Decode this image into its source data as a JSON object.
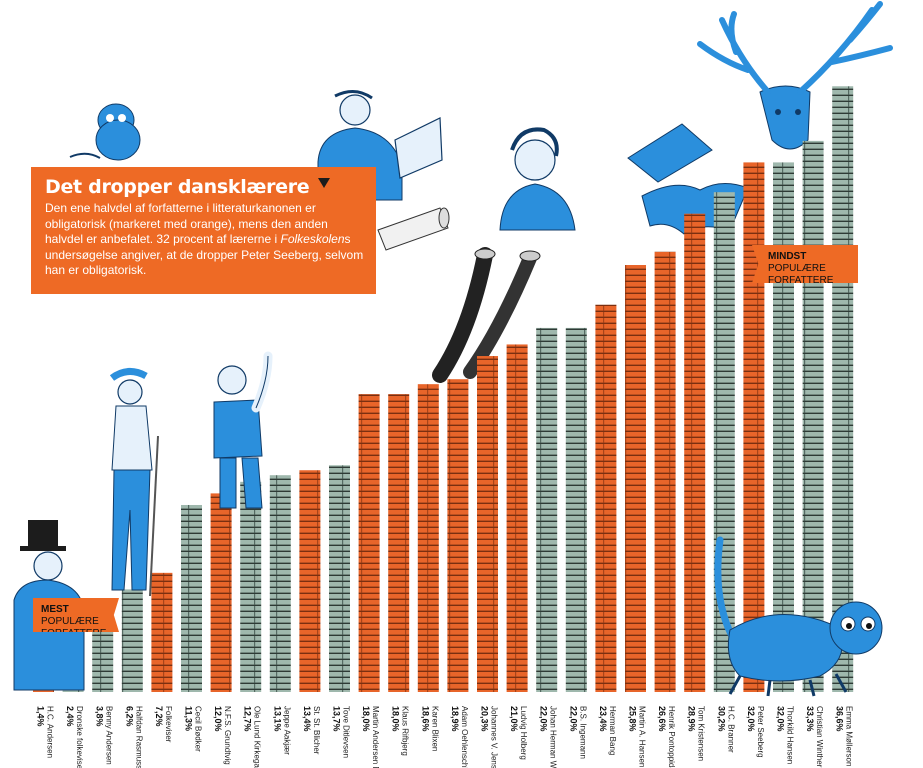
{
  "title": "Det dropper dansklærere",
  "intro_pre": "Den ene halvdel af forfatterne i litteraturkanonen er obligatorisk (markeret med orange), mens den anden halvdel er anbefalet. 32 procent af lærerne i ",
  "intro_em": "Folkeskolen",
  "intro_post": "s undersøgelse angiver, at de dropper Peter Seeberg, selvom han er obligatorisk.",
  "most_bold": "MEST",
  "most_rest": " POPULÆRE FORFATTERE",
  "least_bold": "MINDST",
  "least_rest": " POPULÆRE FORFATTERE",
  "colors": {
    "mandatory": "#e8652a",
    "recommended": "#9fb8ad",
    "accent": "#ee6a25",
    "illustration": "#2b8fdc"
  },
  "chart_data": {
    "type": "bar",
    "ylabel": "",
    "ylim": [
      0,
      40
    ],
    "categories": [
      "H.C. Andersen",
      "Dronske folkeviser",
      "Benny Andersen",
      "Halfdan Rasmussen",
      "Folkeviser",
      "Cecil Bødker",
      "N.F.S. Grundtvig",
      "Ole Lund Kirkegaard",
      "Jeppe Aakjær",
      "St. St. Blicher",
      "Tove Ditlevsen",
      "Martin Andersen Nexø",
      "Klaus Rifbjerg",
      "Karen Blixen",
      "Adam Oehlenschläger",
      "Johannes V. Jensen",
      "Ludvig Holberg",
      "Johan Herman Wessel",
      "B.S. Ingemann",
      "Herman Bang",
      "Martin A. Hansen",
      "Henrik Pontoppidan",
      "Tom Kristensen",
      "H.C. Branner",
      "Peter Seeberg",
      "Thorkild Hansen",
      "Christian Winther",
      "Emma Møllerson"
    ],
    "values": [
      1.4,
      2.4,
      3.8,
      6.2,
      7.2,
      11.3,
      12.0,
      12.7,
      13.1,
      13.4,
      13.7,
      18.0,
      18.0,
      18.6,
      18.9,
      20.3,
      21.0,
      22.0,
      22.0,
      23.4,
      25.8,
      26.6,
      28.9,
      30.2,
      32.0,
      32.0,
      33.3,
      36.6
    ],
    "value_labels": [
      "1,4%",
      "2,4%",
      "3,8%",
      "6,2%",
      "7,2%",
      "11,3%",
      "12,0%",
      "12,7%",
      "13,1%",
      "13,4%",
      "13,7%",
      "18,0%",
      "18,0%",
      "18,6%",
      "18,9%",
      "20,3%",
      "21,0%",
      "22,0%",
      "22,0%",
      "23,4%",
      "25,8%",
      "26,6%",
      "28,9%",
      "30,2%",
      "32,0%",
      "32,0%",
      "33,3%",
      "36,6%"
    ],
    "mandatory": [
      true,
      false,
      false,
      false,
      true,
      false,
      true,
      false,
      false,
      true,
      false,
      true,
      true,
      true,
      true,
      true,
      true,
      false,
      false,
      true,
      true,
      true,
      true,
      false,
      true,
      false,
      false,
      false
    ]
  }
}
